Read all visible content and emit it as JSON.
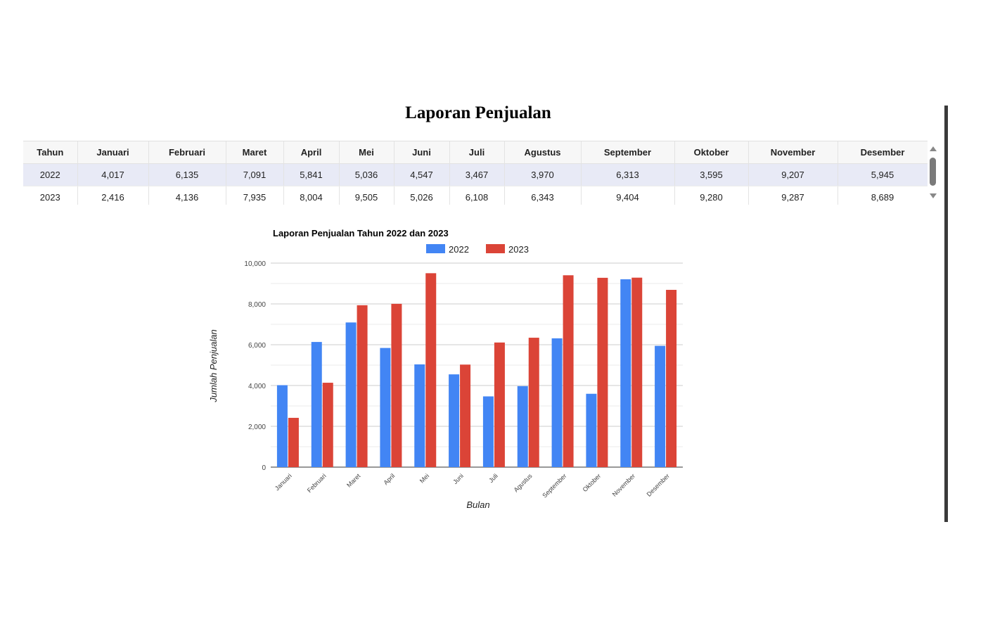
{
  "page": {
    "title": "Laporan Penjualan"
  },
  "table": {
    "headers": [
      "Tahun",
      "Januari",
      "Februari",
      "Maret",
      "April",
      "Mei",
      "Juni",
      "Juli",
      "Agustus",
      "September",
      "Oktober",
      "November",
      "Desember"
    ],
    "rows": [
      [
        "2022",
        "4,017",
        "6,135",
        "7,091",
        "5,841",
        "5,036",
        "4,547",
        "3,467",
        "3,970",
        "6,313",
        "3,595",
        "9,207",
        "5,945"
      ],
      [
        "2023",
        "2,416",
        "4,136",
        "7,935",
        "8,004",
        "9,505",
        "5,026",
        "6,108",
        "6,343",
        "9,404",
        "9,280",
        "9,287",
        "8,689"
      ]
    ],
    "highlight_color": "#e8eaf6"
  },
  "chart_data": {
    "type": "bar",
    "title": "Laporan Penjualan Tahun 2022 dan 2023",
    "xlabel": "Bulan",
    "ylabel": "Jumlah Penjualan",
    "categories": [
      "Januari",
      "Februari",
      "Maret",
      "April",
      "Mei",
      "Juni",
      "Juli",
      "Agustus",
      "September",
      "Oktober",
      "November",
      "Desember"
    ],
    "series": [
      {
        "name": "2022",
        "color": "#4285f4",
        "values": [
          4017,
          6135,
          7091,
          5841,
          5036,
          4547,
          3467,
          3970,
          6313,
          3595,
          9207,
          5945
        ]
      },
      {
        "name": "2023",
        "color": "#db4437",
        "values": [
          2416,
          4136,
          7935,
          8004,
          9505,
          5026,
          6108,
          6343,
          9404,
          9280,
          9287,
          8689
        ]
      }
    ],
    "yticks": [
      "0",
      "2,000",
      "4,000",
      "6,000",
      "8,000",
      "10,000"
    ],
    "ylim": [
      0,
      10000
    ],
    "grid": true,
    "legend": "top"
  }
}
